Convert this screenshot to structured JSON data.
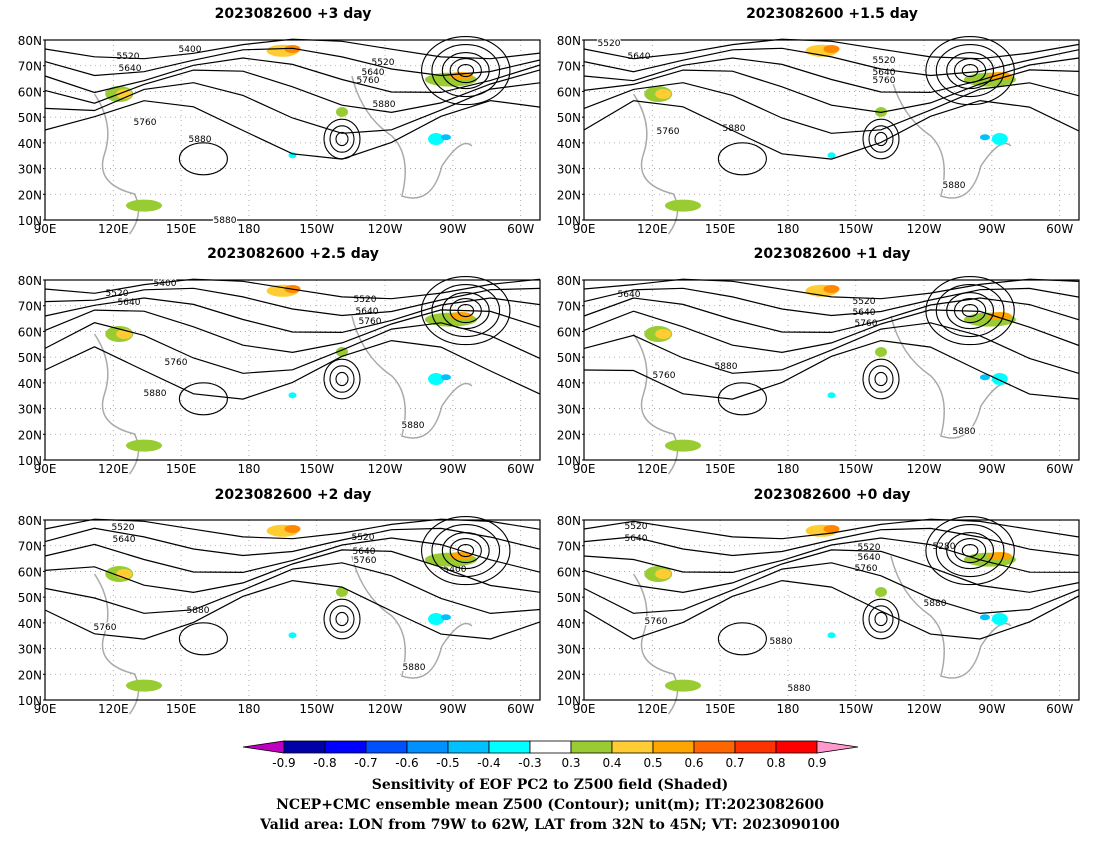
{
  "panels": [
    {
      "title": "2023082600 +3 day"
    },
    {
      "title": "2023082600 +1.5 day"
    },
    {
      "title": "2023082600 +2.5 day"
    },
    {
      "title": "2023082600 +1 day"
    },
    {
      "title": "2023082600 +2 day"
    },
    {
      "title": "2023082600 +0 day"
    }
  ],
  "axes": {
    "lat_labels": [
      "80N",
      "70N",
      "60N",
      "50N",
      "40N",
      "30N",
      "20N",
      "10N"
    ],
    "lon_labels": [
      "90E",
      "120E",
      "150E",
      "180",
      "150W",
      "120W",
      "90W",
      "60W"
    ]
  },
  "contour_labels": {
    "p0": [
      "5400",
      "5520",
      "5640",
      "5520",
      "5640",
      "5760",
      "5880",
      "5760",
      "5880",
      "5880"
    ],
    "p1": [
      "5520",
      "5640",
      "5520",
      "5640",
      "5760",
      "5760",
      "5880",
      "5880"
    ],
    "p2": [
      "5400",
      "5520",
      "5640",
      "5520",
      "5640",
      "5760",
      "5760",
      "5880",
      "5880"
    ],
    "p3": [
      "5640",
      "5520",
      "5640",
      "5760",
      "5760",
      "5880",
      "5880"
    ],
    "p4": [
      "5520",
      "5640",
      "5520",
      "5640",
      "5760",
      "5400",
      "5880",
      "5760",
      "5880"
    ],
    "p5": [
      "5520",
      "5640",
      "5280",
      "5520",
      "5640",
      "5760",
      "5880",
      "5760",
      "5880",
      "5880"
    ]
  },
  "colorbar": {
    "ticks": [
      "-0.9",
      "-0.8",
      "-0.7",
      "-0.6",
      "-0.5",
      "-0.4",
      "-0.3",
      "0.3",
      "0.4",
      "0.5",
      "0.6",
      "0.7",
      "0.8",
      "0.9"
    ],
    "colors": [
      "#c000c0",
      "#0000a8",
      "#0000ff",
      "#0050ff",
      "#0090ff",
      "#00c0ff",
      "#00ffff",
      "#ffffff",
      "#99cc33",
      "#ffcc33",
      "#ffa500",
      "#ff6600",
      "#ff3300",
      "#ff0000",
      "#ff99cc"
    ]
  },
  "caption": {
    "line1": "Sensitivity of EOF PC2 to Z500 field (Shaded)",
    "line2": "NCEP+CMC ensemble mean Z500 (Contour); unit(m); IT:2023082600",
    "line3": "Valid area: LON from 79W to 62W, LAT from 32N to 45N; VT: 2023090100"
  }
}
